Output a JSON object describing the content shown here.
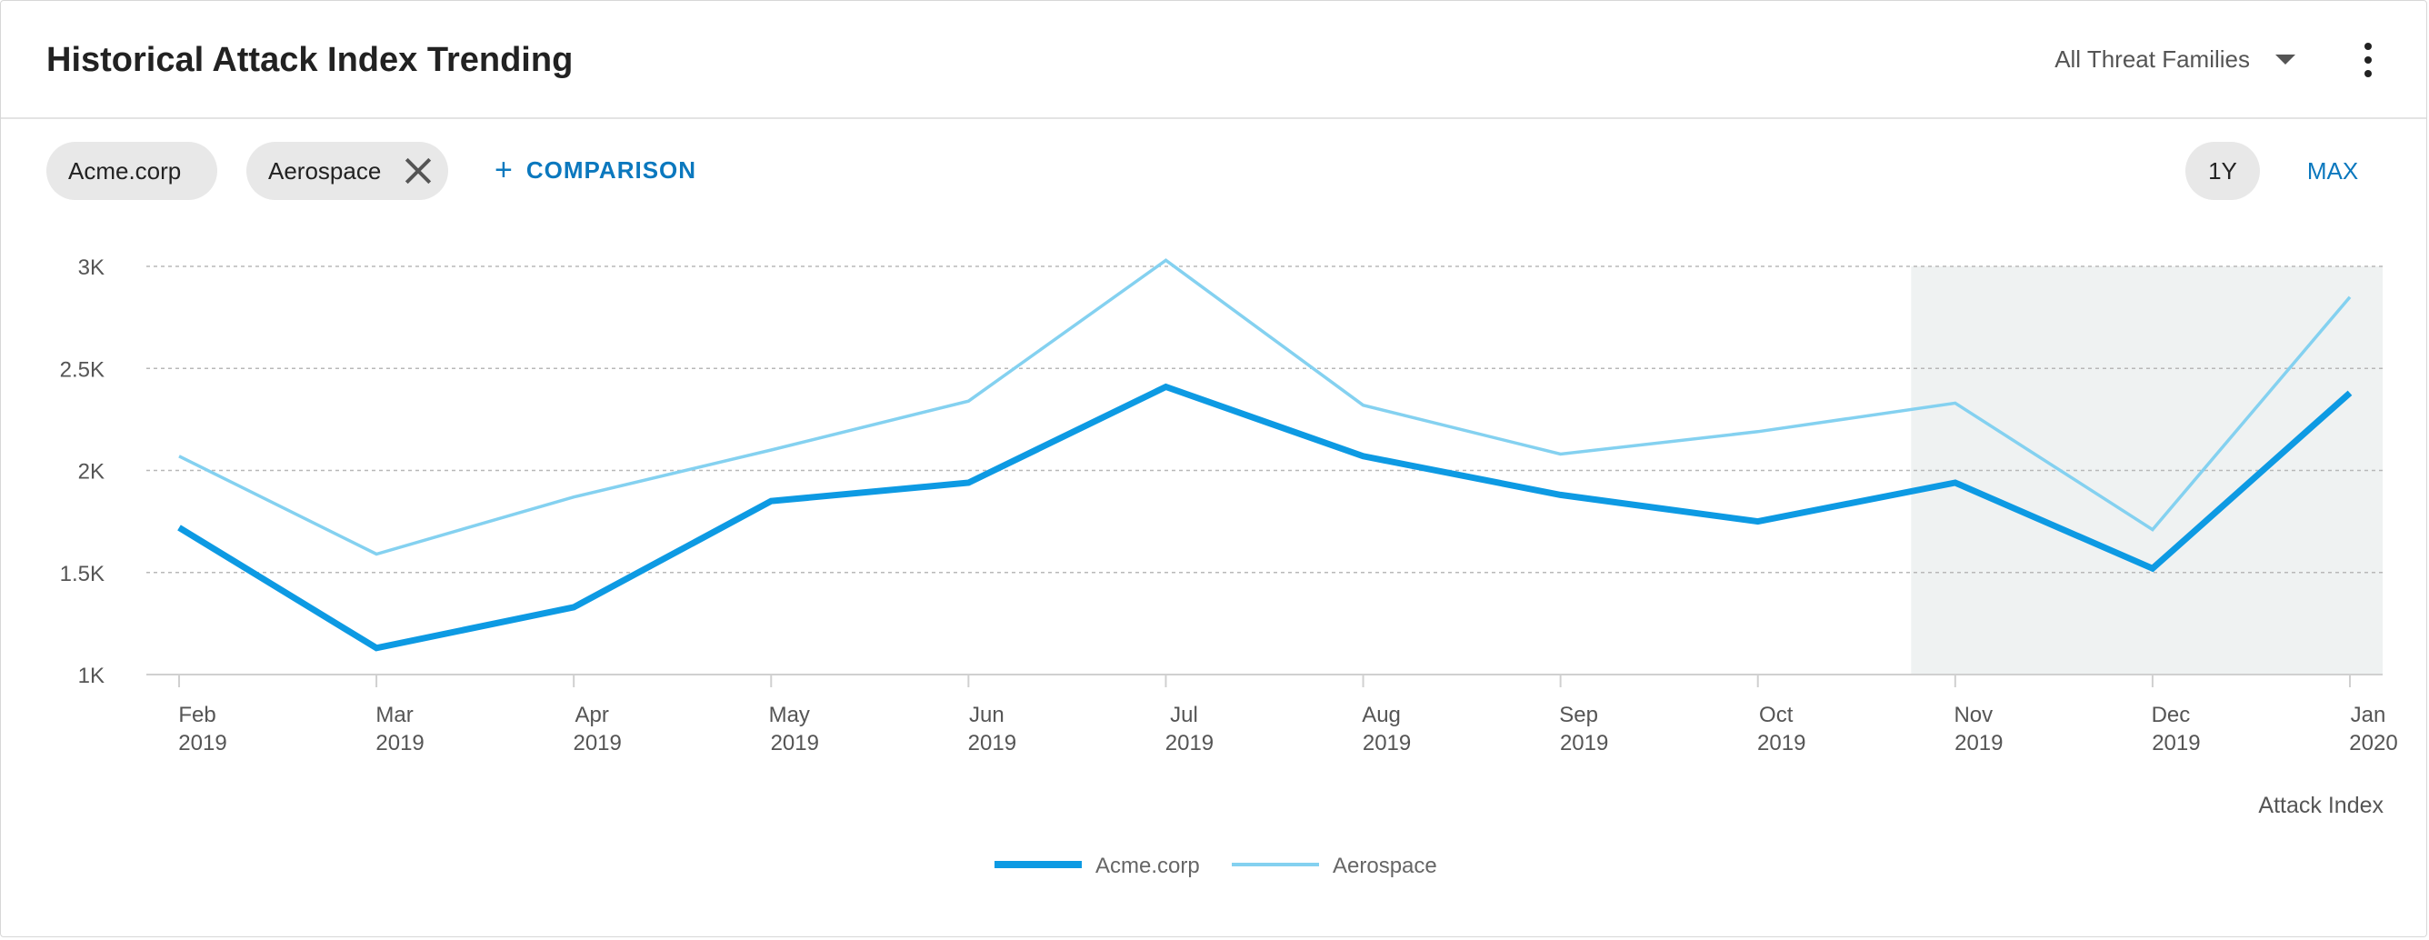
{
  "header": {
    "title": "Historical Attack Index Trending",
    "filter_label": "All Threat Families",
    "more_icon": "more-vertical-icon",
    "caret_icon": "chevron-down-icon"
  },
  "toolbar": {
    "chips": [
      {
        "label": "Acme.corp",
        "removable": false
      },
      {
        "label": "Aerospace",
        "removable": true
      }
    ],
    "comparison_label": "COMPARISON",
    "range_buttons": [
      "1Y",
      "MAX"
    ],
    "selected_range": "1Y"
  },
  "colors": {
    "acme": "#0d9ae3",
    "aerospace": "#84d1f0",
    "accent": "#0b78be",
    "highlight": "#eff2f2"
  },
  "chart_data": {
    "type": "line",
    "x": [
      "Feb 2019",
      "Mar 2019",
      "Apr 2019",
      "May 2019",
      "Jun 2019",
      "Jul 2019",
      "Aug 2019",
      "Sep 2019",
      "Oct 2019",
      "Nov 2019",
      "Dec 2019",
      "Jan 2020"
    ],
    "x_ticks": [
      [
        "Feb",
        "2019"
      ],
      [
        "Mar",
        "2019"
      ],
      [
        "Apr",
        "2019"
      ],
      [
        "May",
        "2019"
      ],
      [
        "Jun",
        "2019"
      ],
      [
        "Jul",
        "2019"
      ],
      [
        "Aug",
        "2019"
      ],
      [
        "Sep",
        "2019"
      ],
      [
        "Oct",
        "2019"
      ],
      [
        "Nov",
        "2019"
      ],
      [
        "Dec",
        "2019"
      ],
      [
        "Jan",
        "2020"
      ]
    ],
    "series": [
      {
        "name": "Acme.corp",
        "values": [
          1720,
          1130,
          1330,
          1850,
          1940,
          2410,
          2070,
          1880,
          1750,
          1940,
          1520,
          2380
        ]
      },
      {
        "name": "Aerospace",
        "values": [
          2070,
          1590,
          1870,
          2100,
          2340,
          3030,
          2320,
          2080,
          2190,
          2330,
          1710,
          2850
        ]
      }
    ],
    "ylim": [
      1000,
      3000
    ],
    "y_ticks": [
      1000,
      1500,
      2000,
      2500,
      3000
    ],
    "y_tick_labels": [
      "1K",
      "1.5K",
      "2K",
      "2.5K",
      "3K"
    ],
    "xlabel": "Attack Index",
    "highlight_from": "Nov 2019",
    "grid": true,
    "legend": "bottom-center"
  }
}
